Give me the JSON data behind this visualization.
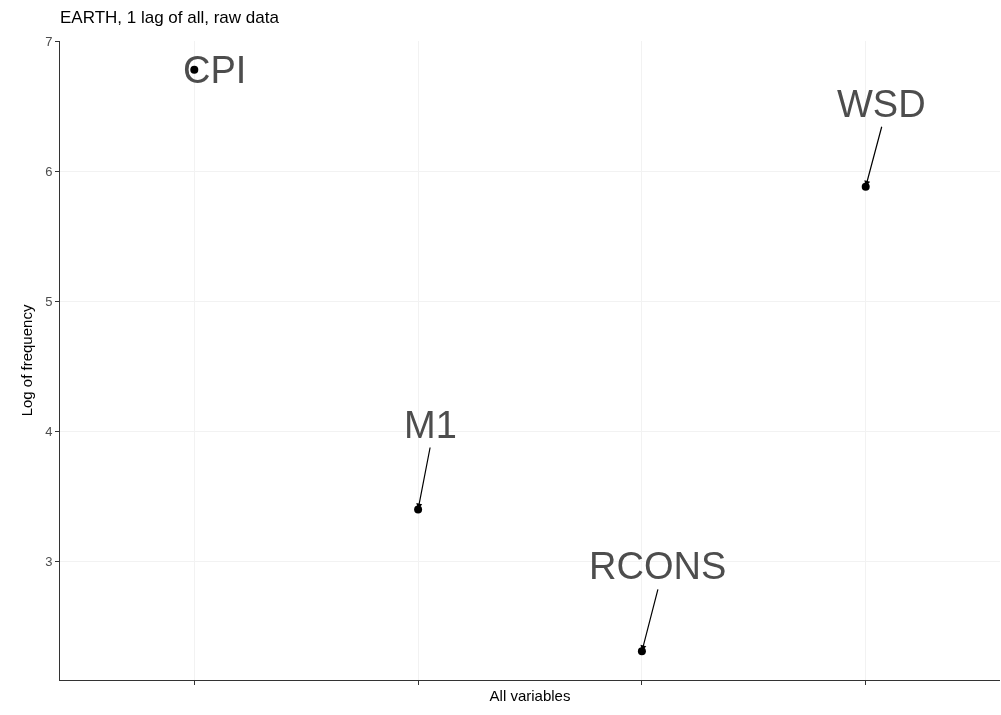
{
  "chart_data": {
    "type": "scatter",
    "title": "EARTH, 1 lag of all, raw data",
    "xlabel": "All variables",
    "ylabel": "Log of frequency",
    "categories": [
      null,
      null,
      null,
      null
    ],
    "series": [
      {
        "color": "#000000",
        "values": [
          6.78,
          3.4,
          2.31,
          5.88
        ],
        "value_labels": [
          "CPI",
          "M1",
          "RCONS",
          "WSD"
        ]
      }
    ],
    "ylim": [
      2.09,
      7.0
    ],
    "yticks": [
      3,
      4,
      5,
      6,
      7
    ],
    "tick_labels": "y",
    "grid": true,
    "legend": false,
    "marker": "circle"
  }
}
